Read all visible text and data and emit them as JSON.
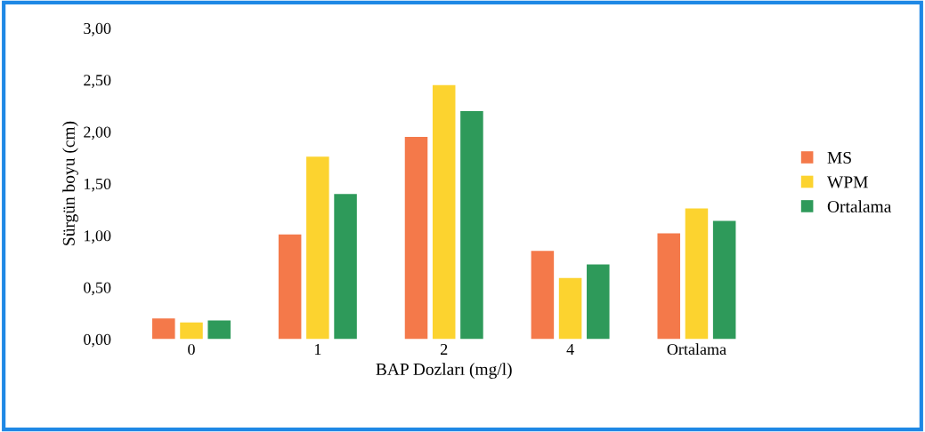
{
  "chart_data": {
    "type": "bar",
    "xlabel": "BAP Dozları (mg/l)",
    "ylabel": "Sürgün boyu (cm)",
    "categories": [
      "0",
      "1",
      "2",
      "4",
      "Ortalama"
    ],
    "series": [
      {
        "name": "MS",
        "color": "#f4794a",
        "values": [
          0.2,
          1.01,
          1.95,
          0.85,
          1.02
        ]
      },
      {
        "name": "WPM",
        "color": "#fcd32f",
        "values": [
          0.16,
          1.76,
          2.45,
          0.59,
          1.26
        ]
      },
      {
        "name": "Ortalama",
        "color": "#2e9a5a",
        "values": [
          0.18,
          1.4,
          2.2,
          0.72,
          1.14
        ]
      }
    ],
    "ylim": [
      0,
      3
    ],
    "yticks": [
      {
        "value": 0,
        "label": "0,00"
      },
      {
        "value": 0.5,
        "label": "0,50"
      },
      {
        "value": 1,
        "label": "1,00"
      },
      {
        "value": 1.5,
        "label": "1,50"
      },
      {
        "value": 2,
        "label": "2,00"
      },
      {
        "value": 2.5,
        "label": "2,50"
      },
      {
        "value": 3,
        "label": "3,00"
      }
    ],
    "grid": false,
    "legend": "right"
  }
}
